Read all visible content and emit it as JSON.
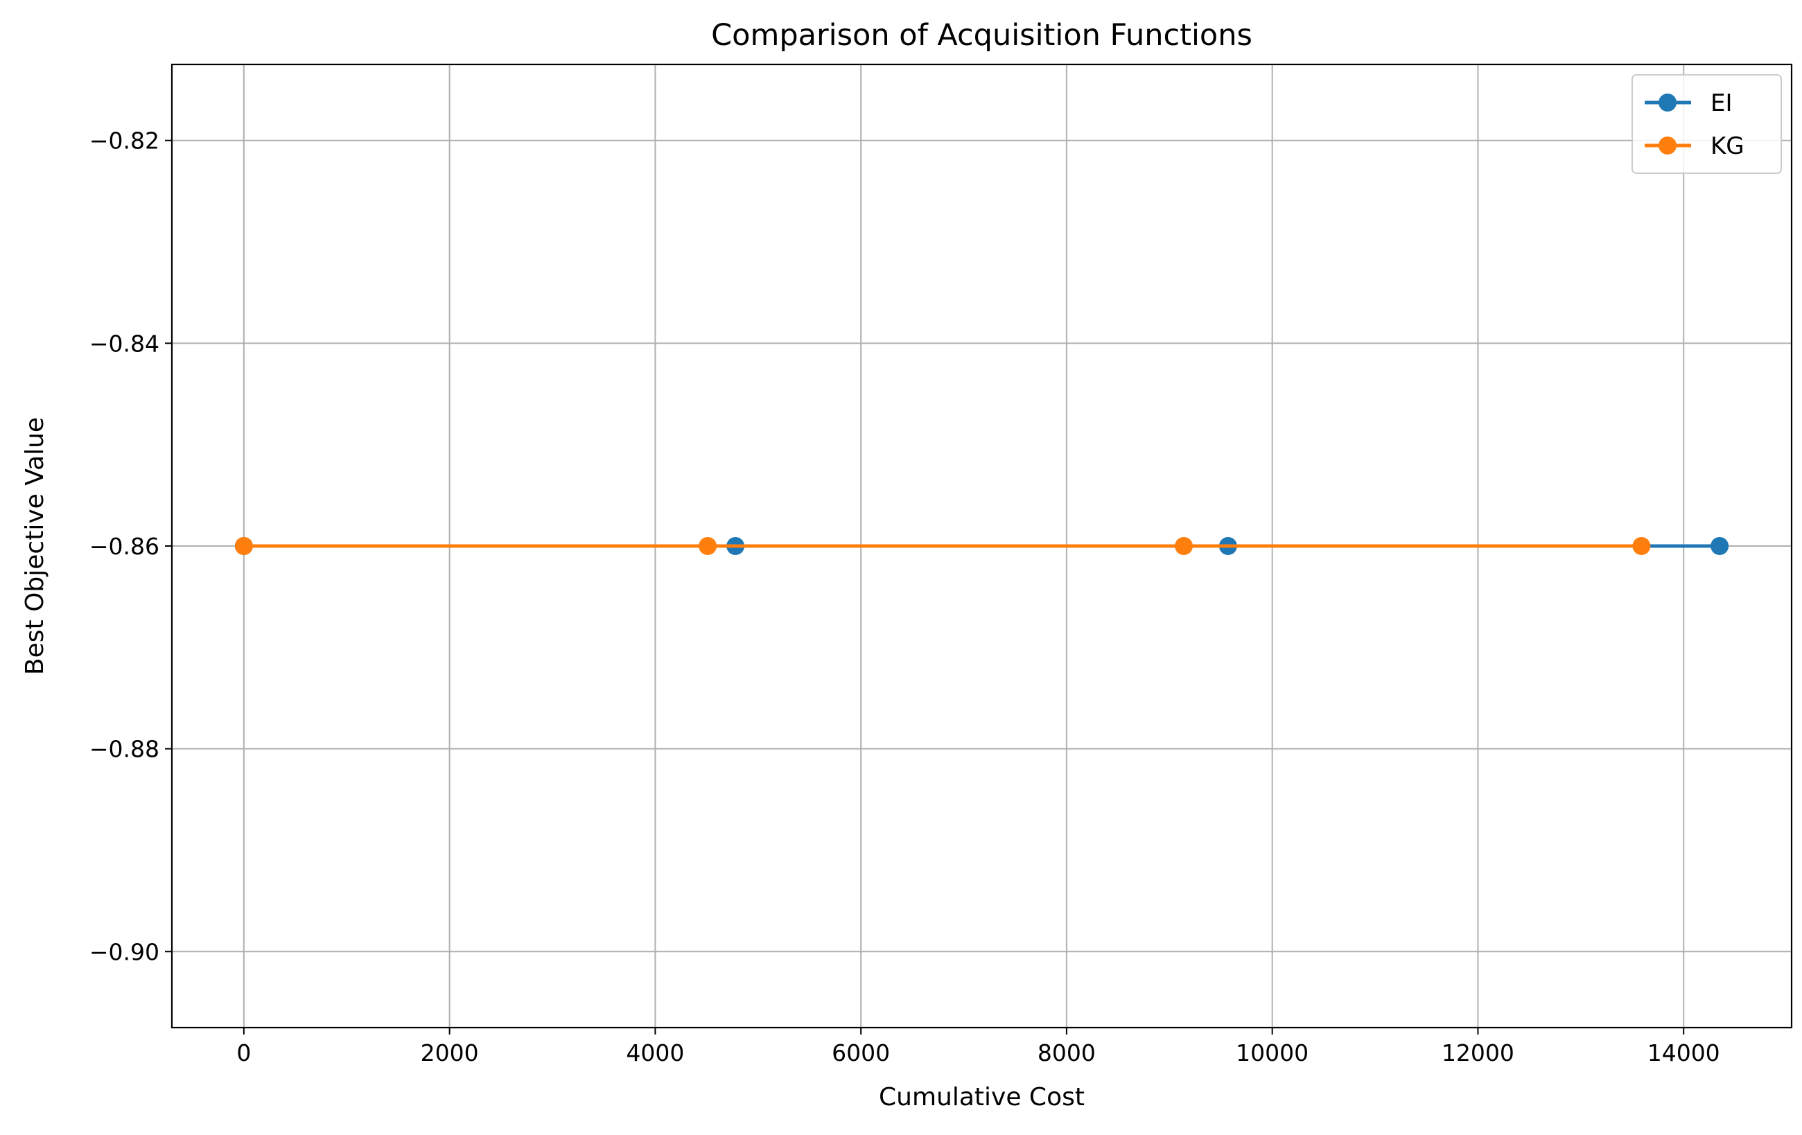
{
  "chart_data": {
    "type": "line",
    "title": "Comparison of Acquisition Functions",
    "xlabel": "Cumulative Cost",
    "ylabel": "Best Objective Value",
    "xlim": [
      -700,
      15050
    ],
    "ylim": [
      -0.9075,
      -0.8125
    ],
    "xticks": [
      0,
      2000,
      4000,
      6000,
      8000,
      10000,
      12000,
      14000
    ],
    "xtick_labels": [
      "0",
      "2000",
      "4000",
      "6000",
      "8000",
      "10000",
      "12000",
      "14000"
    ],
    "yticks": [
      -0.9,
      -0.88,
      -0.86,
      -0.84,
      -0.82
    ],
    "ytick_labels": [
      "−0.90",
      "−0.88",
      "−0.86",
      "−0.84",
      "−0.82"
    ],
    "grid": true,
    "legend_position": "top-right",
    "series": [
      {
        "name": "EI",
        "color": "#1f77b4",
        "marker": "circle",
        "x": [
          0,
          4780,
          9570,
          14350
        ],
        "y": [
          -0.86,
          -0.86,
          -0.86,
          -0.86
        ]
      },
      {
        "name": "KG",
        "color": "#ff7f0e",
        "marker": "circle",
        "x": [
          0,
          4510,
          9140,
          13590
        ],
        "y": [
          -0.86,
          -0.86,
          -0.86,
          -0.86
        ]
      }
    ]
  }
}
